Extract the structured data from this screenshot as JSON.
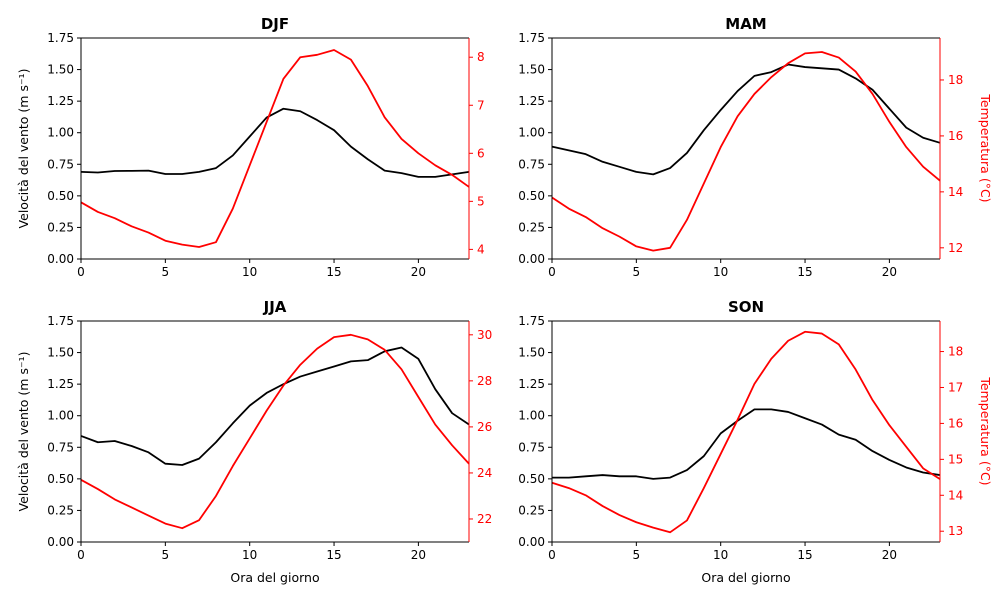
{
  "colors": {
    "wind": "#000000",
    "temperature": "#ff0000",
    "axes": "#000000"
  },
  "labels": {
    "xlabel": "Ora del giorno",
    "ylabel_left": "Velocità del vento (m s⁻¹)",
    "ylabel_right": "Temperatura (°C)"
  },
  "chart_data": [
    {
      "type": "line",
      "title": "DJF",
      "x": [
        0,
        1,
        2,
        3,
        4,
        5,
        6,
        7,
        8,
        9,
        10,
        11,
        12,
        13,
        14,
        15,
        16,
        17,
        18,
        19,
        20,
        21,
        22,
        23
      ],
      "xlim": [
        0,
        23
      ],
      "xticks": [
        0,
        5,
        10,
        15,
        20
      ],
      "ylim_left": [
        0,
        1.75
      ],
      "yticks_left": [
        0.0,
        0.25,
        0.5,
        0.75,
        1.0,
        1.25,
        1.5,
        1.75
      ],
      "ylim_right": [
        3.8,
        8.4
      ],
      "yticks_right": [
        4,
        5,
        6,
        7,
        8
      ],
      "series": [
        {
          "axis": "left",
          "values": [
            0.69,
            0.685,
            0.697,
            0.698,
            0.7,
            0.673,
            0.673,
            0.69,
            0.72,
            0.82,
            0.97,
            1.12,
            1.19,
            1.17,
            1.1,
            1.02,
            0.89,
            0.79,
            0.7,
            0.68,
            0.65,
            0.65,
            0.67,
            0.69
          ]
        },
        {
          "axis": "right",
          "values": [
            4.98,
            4.78,
            4.65,
            4.48,
            4.35,
            4.18,
            4.1,
            4.05,
            4.15,
            4.85,
            5.75,
            6.65,
            7.55,
            8.0,
            8.05,
            8.15,
            7.95,
            7.4,
            6.75,
            6.3,
            6.0,
            5.75,
            5.55,
            5.3
          ]
        }
      ],
      "show_xlabel": false,
      "show_ylabel_left": true,
      "show_ylabel_right": false
    },
    {
      "type": "line",
      "title": "MAM",
      "x": [
        0,
        1,
        2,
        3,
        4,
        5,
        6,
        7,
        8,
        9,
        10,
        11,
        12,
        13,
        14,
        15,
        16,
        17,
        18,
        19,
        20,
        21,
        22,
        23
      ],
      "xlim": [
        0,
        23
      ],
      "xticks": [
        0,
        5,
        10,
        15,
        20
      ],
      "ylim_left": [
        0,
        1.75
      ],
      "yticks_left": [
        0.0,
        0.25,
        0.5,
        0.75,
        1.0,
        1.25,
        1.5,
        1.75
      ],
      "ylim_right": [
        11.6,
        19.5
      ],
      "yticks_right": [
        12,
        14,
        16,
        18
      ],
      "series": [
        {
          "axis": "left",
          "values": [
            0.89,
            0.86,
            0.83,
            0.77,
            0.73,
            0.69,
            0.67,
            0.72,
            0.84,
            1.02,
            1.18,
            1.33,
            1.45,
            1.48,
            1.54,
            1.52,
            1.51,
            1.5,
            1.43,
            1.34,
            1.19,
            1.04,
            0.96,
            0.92
          ]
        },
        {
          "axis": "right",
          "values": [
            13.8,
            13.4,
            13.1,
            12.7,
            12.4,
            12.05,
            11.9,
            12.0,
            13.0,
            14.3,
            15.6,
            16.7,
            17.5,
            18.1,
            18.6,
            18.95,
            19.0,
            18.8,
            18.3,
            17.5,
            16.5,
            15.6,
            14.9,
            14.4
          ]
        }
      ],
      "show_xlabel": false,
      "show_ylabel_left": false,
      "show_ylabel_right": true
    },
    {
      "type": "line",
      "title": "JJA",
      "x": [
        0,
        1,
        2,
        3,
        4,
        5,
        6,
        7,
        8,
        9,
        10,
        11,
        12,
        13,
        14,
        15,
        16,
        17,
        18,
        19,
        20,
        21,
        22,
        23
      ],
      "xlim": [
        0,
        23
      ],
      "xticks": [
        0,
        5,
        10,
        15,
        20
      ],
      "ylim_left": [
        0,
        1.75
      ],
      "yticks_left": [
        0.0,
        0.25,
        0.5,
        0.75,
        1.0,
        1.25,
        1.5,
        1.75
      ],
      "ylim_right": [
        21,
        30.6
      ],
      "yticks_right": [
        22,
        24,
        26,
        28,
        30
      ],
      "series": [
        {
          "axis": "left",
          "values": [
            0.84,
            0.79,
            0.8,
            0.76,
            0.71,
            0.62,
            0.61,
            0.66,
            0.79,
            0.94,
            1.08,
            1.18,
            1.25,
            1.31,
            1.35,
            1.39,
            1.43,
            1.44,
            1.51,
            1.54,
            1.45,
            1.21,
            1.02,
            0.93
          ]
        },
        {
          "axis": "right",
          "values": [
            23.7,
            23.3,
            22.85,
            22.5,
            22.15,
            21.8,
            21.6,
            21.95,
            23.0,
            24.3,
            25.5,
            26.7,
            27.8,
            28.7,
            29.4,
            29.9,
            30.0,
            29.8,
            29.35,
            28.5,
            27.3,
            26.1,
            25.2,
            24.4
          ]
        }
      ],
      "show_xlabel": true,
      "show_ylabel_left": true,
      "show_ylabel_right": false
    },
    {
      "type": "line",
      "title": "SON",
      "x": [
        0,
        1,
        2,
        3,
        4,
        5,
        6,
        7,
        8,
        9,
        10,
        11,
        12,
        13,
        14,
        15,
        16,
        17,
        18,
        19,
        20,
        21,
        22,
        23
      ],
      "xlim": [
        0,
        23
      ],
      "xticks": [
        0,
        5,
        10,
        15,
        20
      ],
      "ylim_left": [
        0,
        1.75
      ],
      "yticks_left": [
        0.0,
        0.25,
        0.5,
        0.75,
        1.0,
        1.25,
        1.5,
        1.75
      ],
      "ylim_right": [
        12.7,
        18.85
      ],
      "yticks_right": [
        13,
        14,
        15,
        16,
        17,
        18
      ],
      "series": [
        {
          "axis": "left",
          "values": [
            0.51,
            0.51,
            0.52,
            0.53,
            0.52,
            0.52,
            0.5,
            0.51,
            0.57,
            0.68,
            0.86,
            0.96,
            1.05,
            1.05,
            1.03,
            0.98,
            0.93,
            0.85,
            0.81,
            0.72,
            0.65,
            0.59,
            0.55,
            0.53
          ]
        },
        {
          "axis": "right",
          "values": [
            14.35,
            14.2,
            14.0,
            13.7,
            13.45,
            13.25,
            13.1,
            12.97,
            13.3,
            14.2,
            15.15,
            16.1,
            17.1,
            17.8,
            18.3,
            18.55,
            18.5,
            18.2,
            17.5,
            16.65,
            15.95,
            15.35,
            14.75,
            14.45
          ]
        }
      ],
      "show_xlabel": true,
      "show_ylabel_left": false,
      "show_ylabel_right": true
    }
  ]
}
